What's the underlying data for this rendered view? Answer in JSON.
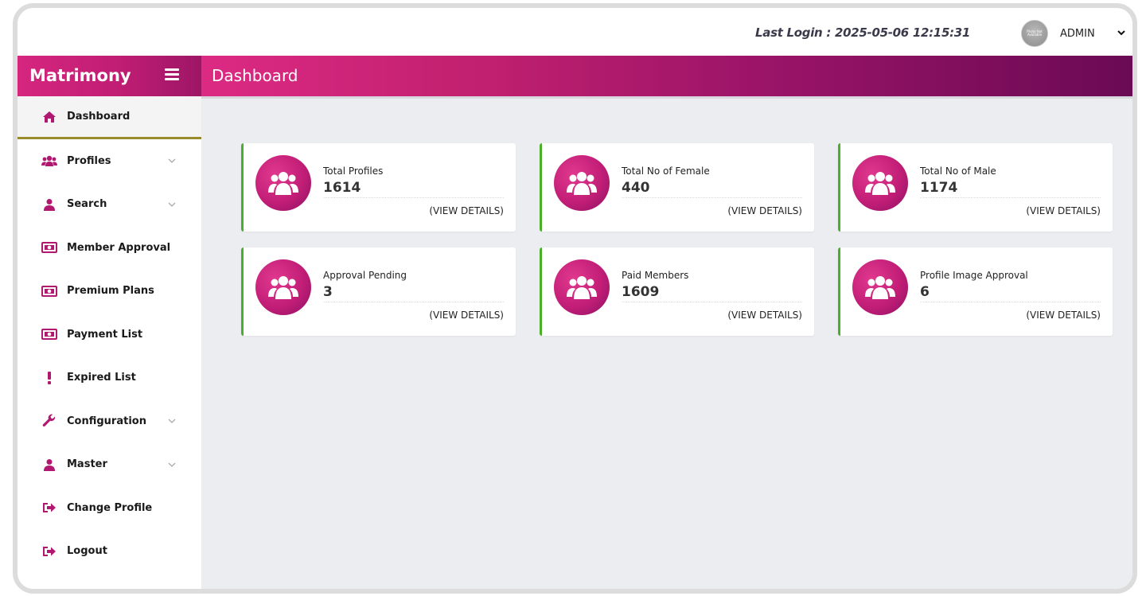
{
  "header": {
    "last_login": "Last Login : 2025-05-06 12:15:31",
    "avatar_text": "Photo Not Available",
    "user_name": "ADMIN"
  },
  "brand": {
    "name": "Matrimony"
  },
  "page": {
    "title": "Dashboard"
  },
  "colors": {
    "primary": "#c21e77",
    "dark": "#6a0a55",
    "accent_border": "#4caf2a",
    "active_underline": "#9a8a2a"
  },
  "sidebar": {
    "items": [
      {
        "label": "Dashboard",
        "icon": "home-icon",
        "has_submenu": false,
        "active": true
      },
      {
        "label": "Profiles",
        "icon": "users-icon",
        "has_submenu": true
      },
      {
        "label": "Search",
        "icon": "user-icon",
        "has_submenu": true
      },
      {
        "label": "Member Approval",
        "icon": "money-icon",
        "has_submenu": false
      },
      {
        "label": "Premium Plans",
        "icon": "money-icon",
        "has_submenu": false
      },
      {
        "label": "Payment List",
        "icon": "money-icon",
        "has_submenu": false
      },
      {
        "label": "Expired List",
        "icon": "exclamation-icon",
        "has_submenu": false
      },
      {
        "label": "Configuration",
        "icon": "wrench-icon",
        "has_submenu": true
      },
      {
        "label": "Master",
        "icon": "user-icon",
        "has_submenu": true
      },
      {
        "label": "Change Profile",
        "icon": "sign-out-icon",
        "has_submenu": false
      },
      {
        "label": "Logout",
        "icon": "sign-out-icon",
        "has_submenu": false
      }
    ]
  },
  "stats": [
    {
      "label": "Total Profiles",
      "value": "1614",
      "link": "(VIEW DETAILS)",
      "icon": "users-icon"
    },
    {
      "label": "Total No of Female",
      "value": "440",
      "link": "(VIEW DETAILS)",
      "icon": "users-icon"
    },
    {
      "label": "Total No of Male",
      "value": "1174",
      "link": "(VIEW DETAILS)",
      "icon": "users-icon"
    },
    {
      "label": "Approval Pending",
      "value": "3",
      "link": "(VIEW DETAILS)",
      "icon": "users-icon"
    },
    {
      "label": "Paid Members",
      "value": "1609",
      "link": "(VIEW DETAILS)",
      "icon": "users-icon"
    },
    {
      "label": "Profile Image Approval",
      "value": "6",
      "link": "(VIEW DETAILS)",
      "icon": "users-icon"
    }
  ]
}
